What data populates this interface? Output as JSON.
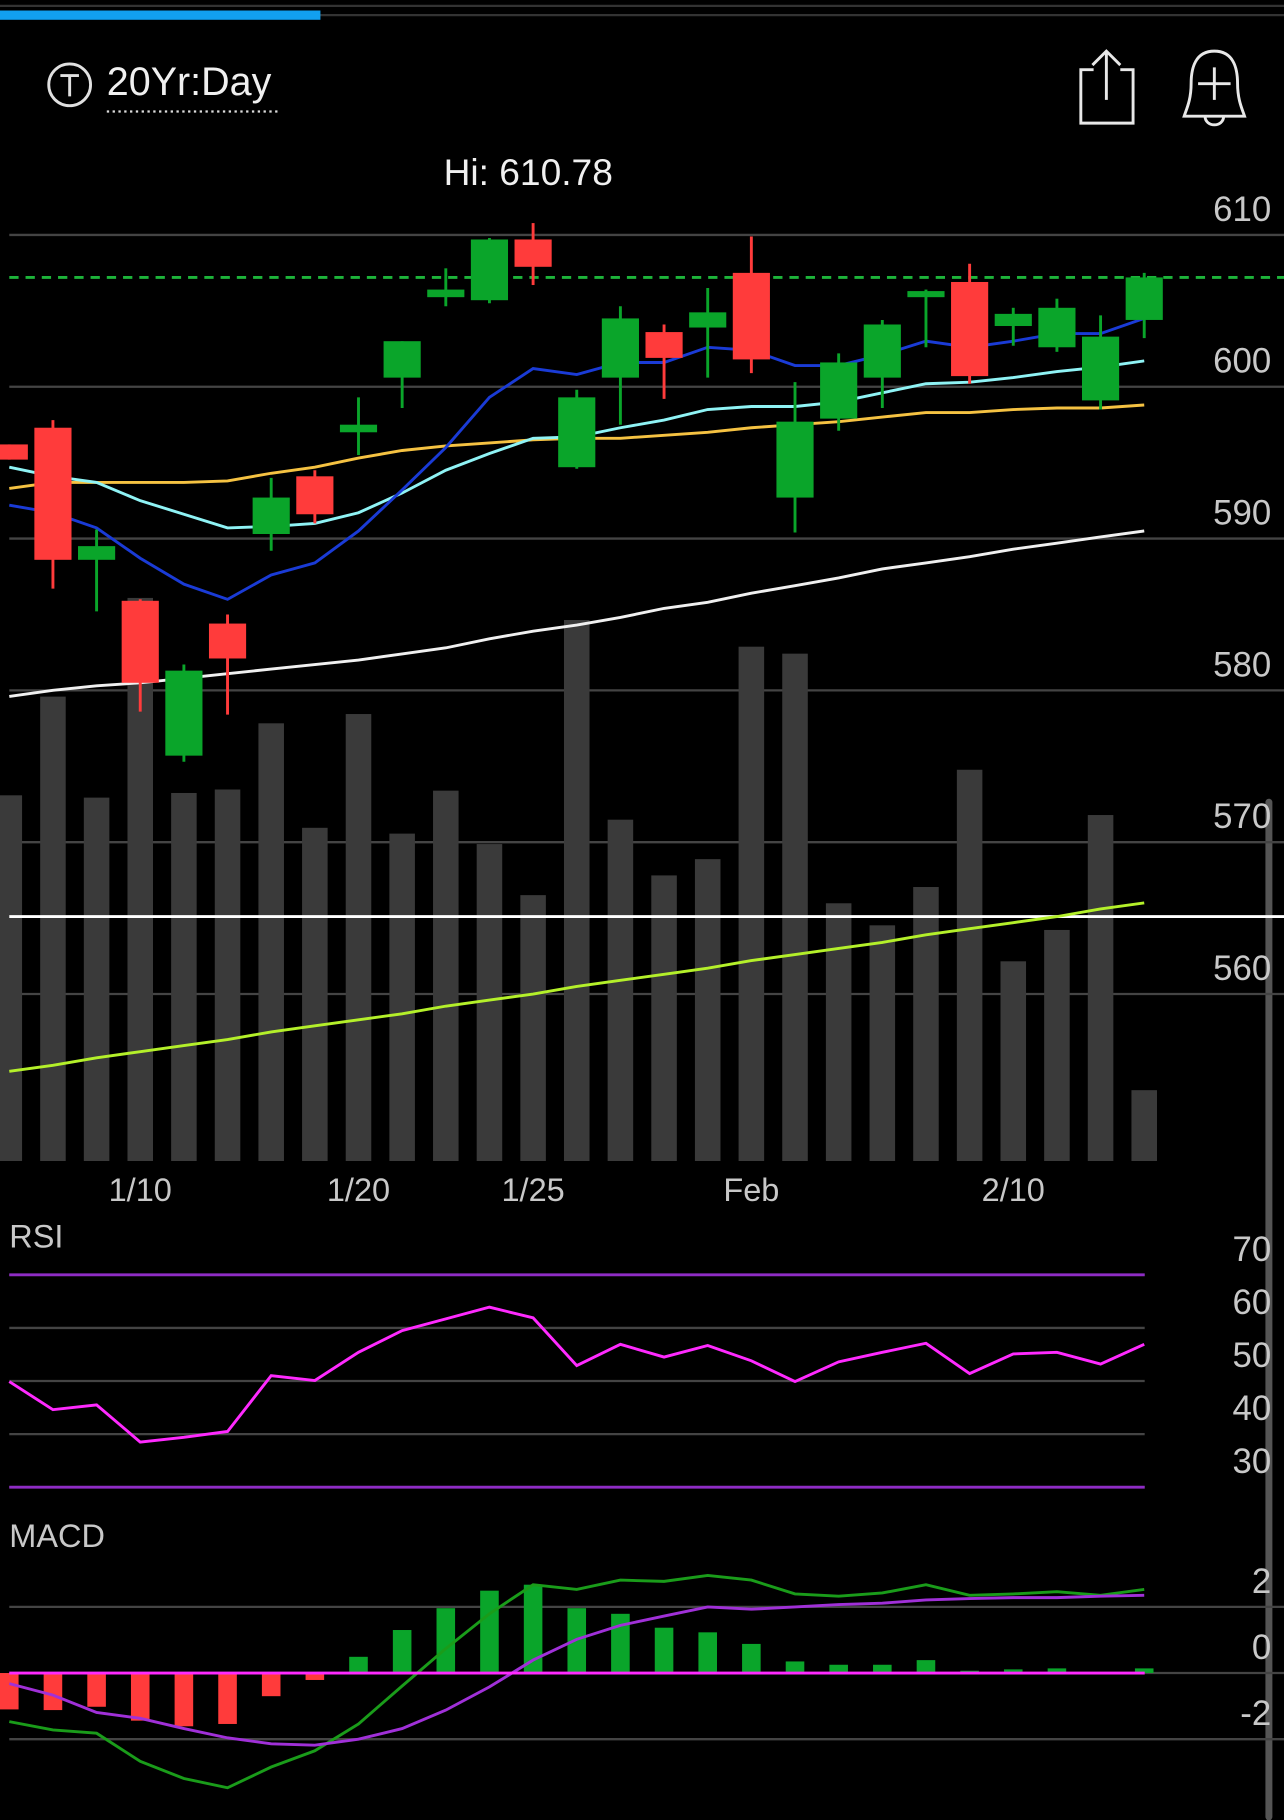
{
  "header": {
    "timeframe": "20Yr:Day"
  },
  "chart_data": [
    {
      "type": "candlestick",
      "annotation": "Hi: 610.78",
      "categories": [
        null,
        null,
        null,
        "1/10",
        null,
        null,
        null,
        null,
        "1/20",
        null,
        null,
        null,
        "1/25",
        null,
        null,
        null,
        null,
        "Feb",
        null,
        null,
        null,
        null,
        null,
        "2/10",
        null,
        null,
        null
      ],
      "open": [
        596.2,
        597.3,
        588.6,
        585.9,
        575.7,
        584.4,
        590.3,
        594.1,
        597.0,
        600.6,
        605.9,
        605.7,
        609.7,
        594.7,
        600.6,
        603.6,
        603.9,
        607.5,
        592.7,
        597.9,
        600.6,
        605.9,
        606.9,
        604.0,
        602.6,
        599.1,
        604.4
      ],
      "high": [
        596.2,
        597.8,
        590.6,
        586.0,
        581.7,
        585.0,
        594.0,
        594.5,
        599.3,
        603.0,
        607.8,
        609.8,
        610.78,
        599.8,
        605.3,
        604.1,
        606.5,
        609.9,
        600.3,
        602.2,
        604.4,
        606.4,
        608.1,
        605.2,
        605.8,
        604.7,
        607.5
      ],
      "low": [
        595.2,
        586.7,
        585.2,
        578.6,
        575.3,
        578.4,
        589.2,
        591.0,
        595.5,
        598.6,
        605.3,
        605.5,
        606.7,
        594.6,
        597.5,
        599.2,
        600.6,
        600.9,
        590.4,
        597.1,
        598.6,
        602.6,
        600.2,
        602.7,
        602.3,
        598.5,
        603.2
      ],
      "close": [
        595.2,
        588.6,
        589.5,
        580.5,
        581.3,
        582.1,
        592.7,
        591.6,
        597.5,
        603.0,
        606.4,
        609.7,
        607.9,
        599.3,
        604.5,
        601.9,
        604.9,
        601.8,
        597.7,
        601.6,
        604.1,
        606.3,
        600.7,
        604.8,
        605.2,
        603.3,
        607.2
      ],
      "up_color": "#0aa52a",
      "down_color": "#ff3b3b",
      "volume": {
        "color": "#3a3a3a",
        "values": [
          315,
          400,
          313,
          485,
          317,
          320,
          377,
          287,
          385,
          282,
          319,
          273,
          229,
          466,
          294,
          246,
          260,
          443,
          437,
          222,
          203,
          236,
          337,
          172,
          199,
          298,
          61
        ]
      },
      "moving_averages": [
        {
          "color": "#f0f0f0",
          "values": [
            579.6,
            580.0,
            580.3,
            580.5,
            580.8,
            581.1,
            581.4,
            581.7,
            582.0,
            582.4,
            582.8,
            583.4,
            583.9,
            584.3,
            584.8,
            585.4,
            585.8,
            586.4,
            586.9,
            587.4,
            588.0,
            588.4,
            588.8,
            589.3,
            589.7,
            590.1,
            590.5
          ]
        },
        {
          "color": "#b4f02a",
          "values": [
            554.9,
            555.3,
            555.8,
            556.2,
            556.6,
            557.0,
            557.5,
            557.9,
            558.3,
            558.7,
            559.2,
            559.6,
            560.0,
            560.5,
            560.9,
            561.3,
            561.7,
            562.2,
            562.6,
            563.0,
            563.4,
            563.9,
            564.3,
            564.7,
            565.1,
            565.6,
            566.0
          ]
        },
        {
          "color": "#f5c242",
          "values": [
            593.3,
            593.7,
            593.7,
            593.7,
            593.7,
            593.8,
            594.3,
            594.7,
            595.3,
            595.8,
            596.1,
            596.3,
            596.5,
            596.6,
            596.6,
            596.8,
            597.0,
            597.3,
            597.5,
            597.7,
            598.0,
            598.3,
            598.3,
            598.5,
            598.6,
            598.6,
            598.8
          ]
        },
        {
          "color": "#8ff3f5",
          "values": [
            594.7,
            594.1,
            593.7,
            592.5,
            591.6,
            590.7,
            590.8,
            591.0,
            591.7,
            593.0,
            594.5,
            595.6,
            596.6,
            596.7,
            597.3,
            597.8,
            598.5,
            598.7,
            598.7,
            599.0,
            599.6,
            600.2,
            600.3,
            600.6,
            601.0,
            601.3,
            601.7
          ]
        },
        {
          "color": "#1a3bd6",
          "values": [
            592.2,
            591.7,
            590.7,
            588.7,
            587.0,
            586.0,
            587.6,
            588.4,
            590.5,
            593.2,
            596.0,
            599.3,
            601.2,
            600.8,
            601.6,
            601.6,
            602.6,
            602.4,
            601.4,
            601.4,
            602.1,
            603.0,
            602.6,
            603.0,
            603.5,
            603.5,
            604.5
          ]
        }
      ],
      "reference_lines": [
        {
          "value": 565.1,
          "color": "#ffffff",
          "style": "solid"
        },
        {
          "value": 607.2,
          "color": "#1db43a",
          "style": "dashed"
        }
      ],
      "ylim": [
        549,
        614
      ],
      "yticks": [
        560,
        570,
        580,
        590,
        600,
        610
      ],
      "grid": true
    },
    {
      "type": "line",
      "title": "RSI",
      "series": [
        {
          "color": "#ff2aff",
          "values": [
            49.9,
            44.6,
            45.5,
            38.5,
            39.4,
            40.5,
            51.0,
            50.1,
            55.4,
            59.5,
            61.7,
            63.9,
            61.9,
            52.9,
            56.9,
            54.5,
            56.7,
            53.8,
            49.9,
            53.6,
            55.4,
            57.1,
            51.4,
            55.1,
            55.4,
            53.2,
            56.9
          ]
        }
      ],
      "reference_lines": [
        {
          "value": 70,
          "color": "#8e2cc4",
          "style": "solid"
        },
        {
          "value": 30,
          "color": "#8e2cc4",
          "style": "solid"
        }
      ],
      "ylim": [
        26.5,
        80.5
      ],
      "yticks": [
        30,
        40,
        50,
        60,
        70
      ],
      "grid": true
    },
    {
      "type": "macd",
      "title": "MACD",
      "series": [
        {
          "color": "#1a9c1a",
          "values": [
            -1.47,
            -1.72,
            -1.82,
            -2.67,
            -3.19,
            -3.47,
            -2.84,
            -2.35,
            -1.54,
            -0.39,
            0.74,
            1.79,
            2.67,
            2.53,
            2.81,
            2.77,
            2.95,
            2.81,
            2.39,
            2.32,
            2.42,
            2.67,
            2.35,
            2.39,
            2.46,
            2.35,
            2.53
          ]
        },
        {
          "color": "#a030d8",
          "values": [
            -0.32,
            -0.67,
            -1.19,
            -1.37,
            -1.68,
            -1.96,
            -2.14,
            -2.18,
            -2.0,
            -1.68,
            -1.12,
            -0.42,
            0.39,
            1.02,
            1.44,
            1.72,
            2.0,
            1.93,
            2.0,
            2.07,
            2.11,
            2.21,
            2.25,
            2.28,
            2.28,
            2.32,
            2.35
          ]
        }
      ],
      "histogram": {
        "up_color": "#0aa52a",
        "down_color": "#ff3b3b",
        "values": [
          -1.1,
          -1.12,
          -1.02,
          -1.44,
          -1.61,
          -1.54,
          -0.7,
          -0.21,
          0.49,
          1.3,
          1.96,
          2.49,
          2.67,
          1.96,
          1.79,
          1.37,
          1.23,
          0.88,
          0.35,
          0.25,
          0.25,
          0.39,
          0.07,
          0.11,
          0.14,
          0,
          0.14
        ]
      },
      "reference_lines": [
        {
          "value": 0,
          "color": "#ff2aff",
          "style": "solid"
        }
      ],
      "ylim": [
        -4.35,
        4.95
      ],
      "yticks": [
        -2,
        0,
        2
      ],
      "grid": true
    }
  ]
}
